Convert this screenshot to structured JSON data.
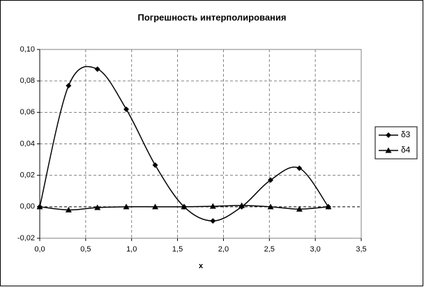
{
  "chart_data": {
    "type": "line",
    "title": "Погрешность интерполирования",
    "x_label": "x",
    "x": [
      0,
      0.314,
      0.628,
      0.942,
      1.257,
      1.571,
      1.885,
      2.199,
      2.513,
      2.827,
      3.142
    ],
    "series": [
      {
        "name": "δ3",
        "color": "#000000",
        "marker": "diamond",
        "values": [
          0,
          0.077,
          0.0875,
          0.062,
          0.0265,
          0,
          -0.009,
          0,
          0.017,
          0.0245,
          0
        ]
      },
      {
        "name": "δ4",
        "color": "#000000",
        "marker": "triangle",
        "values": [
          0,
          -0.002,
          -0.0005,
          0,
          0,
          0,
          0.0003,
          0.0008,
          0,
          -0.0015,
          0
        ]
      }
    ],
    "xlim": [
      0,
      3.5
    ],
    "xticks": [
      {
        "value": 0,
        "label": "0,0"
      },
      {
        "value": 0.5,
        "label": "0,5"
      },
      {
        "value": 1,
        "label": "1,0"
      },
      {
        "value": 1.5,
        "label": "1,5"
      },
      {
        "value": 2,
        "label": "2,0"
      },
      {
        "value": 2.5,
        "label": "2,5"
      },
      {
        "value": 3,
        "label": "3,0"
      },
      {
        "value": 3.5,
        "label": "3,5"
      }
    ],
    "ylim": [
      -0.02,
      0.1
    ],
    "yticks": [
      {
        "value": -0.02,
        "label": "-0,02"
      },
      {
        "value": 0,
        "label": "0,00"
      },
      {
        "value": 0.02,
        "label": "0,02"
      },
      {
        "value": 0.04,
        "label": "0,04"
      },
      {
        "value": 0.06,
        "label": "0,06"
      },
      {
        "value": 0.08,
        "label": "0,08"
      },
      {
        "value": 0.1,
        "label": "0,10"
      }
    ],
    "grid": true,
    "smooth": true,
    "legend": "right"
  }
}
